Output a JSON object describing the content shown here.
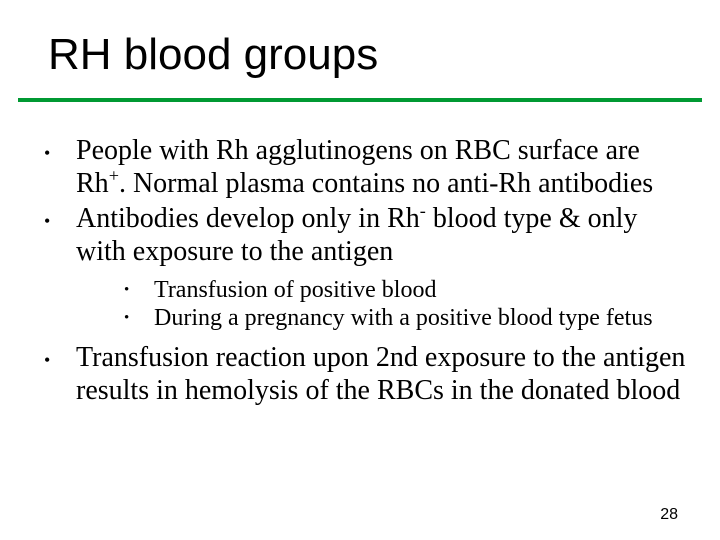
{
  "slide": {
    "title": "RH blood groups",
    "title_font_family": "Arial",
    "title_font_size": 44,
    "title_color": "#000000",
    "underline_color": "#009933",
    "underline_thickness": 4,
    "background_color": "#ffffff",
    "body_font_family": "Times New Roman",
    "bullets": {
      "level1_font_size": 28,
      "level2_font_size": 24,
      "bullet_char": "•",
      "items": [
        {
          "text_parts": [
            "People with Rh agglutinogens on RBC surface are Rh",
            "+",
            ".  Normal plasma contains no anti-Rh antibodies"
          ],
          "superscript_index": 1
        },
        {
          "text_parts": [
            "Antibodies develop only in Rh",
            "-",
            " blood type & only with exposure to the antigen"
          ],
          "superscript_index": 1,
          "children": [
            {
              "text": "Transfusion of positive blood"
            },
            {
              "text": "During a pregnancy with a positive blood type fetus"
            }
          ]
        },
        {
          "text": "Transfusion reaction upon 2nd exposure to the antigen results in hemolysis of the RBCs in the donated blood"
        }
      ]
    },
    "page_number": "28",
    "page_number_font_size": 16
  }
}
